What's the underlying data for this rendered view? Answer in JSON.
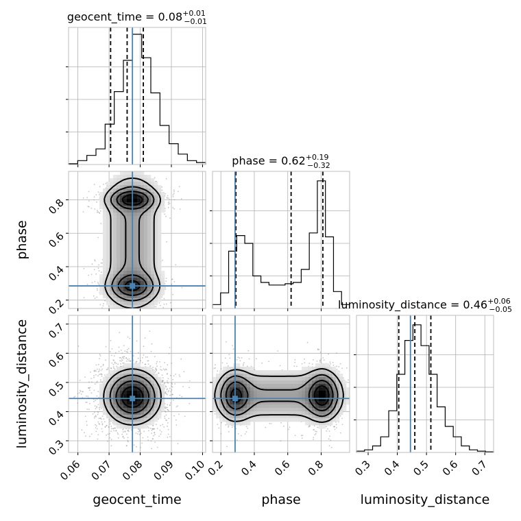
{
  "chart_data": {
    "type": "corner",
    "parameters": [
      {
        "name": "geocent_time",
        "title_prefix": "geocent_time = ",
        "median": "0.08",
        "plus": "+0.01",
        "minus": "−0.01",
        "range": [
          0.057,
          0.101
        ],
        "ticks": [
          0.06,
          0.07,
          0.08,
          0.09,
          0.1
        ],
        "tick_labels": [
          "0.06",
          "0.07",
          "0.08",
          "0.09",
          "0.10"
        ],
        "quantiles": [
          0.0705,
          0.0758,
          0.081
        ],
        "truth": 0.0775,
        "hist": [
          0.006,
          0.03,
          0.07,
          0.12,
          0.31,
          0.56,
          0.8,
          1.0,
          0.82,
          0.55,
          0.3,
          0.16,
          0.08,
          0.03,
          0.015
        ]
      },
      {
        "name": "phase",
        "title_prefix": "phase = ",
        "median": "0.62",
        "plus": "+0.19",
        "minus": "−0.32",
        "range": [
          0.15,
          0.97
        ],
        "ticks": [
          0.2,
          0.4,
          0.6,
          0.8
        ],
        "tick_labels": [
          "0.2",
          "0.4",
          "0.6",
          "0.8"
        ],
        "quantiles": [
          0.29,
          0.62,
          0.81
        ],
        "truth": 0.285,
        "hist": [
          0.03,
          0.12,
          0.44,
          0.56,
          0.5,
          0.25,
          0.2,
          0.18,
          0.18,
          0.19,
          0.2,
          0.3,
          0.58,
          0.98,
          0.55,
          0.13,
          0.03
        ]
      },
      {
        "name": "luminosity_distance",
        "title_prefix": "luminosity_distance = ",
        "median": "0.46",
        "plus": "+0.06",
        "minus": "−0.05",
        "range": [
          0.26,
          0.73
        ],
        "ticks": [
          0.3,
          0.4,
          0.5,
          0.6,
          0.7
        ],
        "tick_labels": [
          "0.3",
          "0.4",
          "0.5",
          "0.6",
          "0.7"
        ],
        "quantiles": [
          0.405,
          0.46,
          0.515
        ],
        "truth": 0.445,
        "hist": [
          0.01,
          0.02,
          0.05,
          0.12,
          0.32,
          0.6,
          0.86,
          0.98,
          0.82,
          0.6,
          0.35,
          0.2,
          0.12,
          0.05,
          0.02,
          0.01,
          0.005
        ]
      }
    ],
    "ytick_params": {
      "phase": {
        "ticks": [
          0.2,
          0.4,
          0.6,
          0.8
        ],
        "tick_labels": [
          "0.2",
          "0.4",
          "0.6",
          "0.8"
        ]
      },
      "luminosity_distance": {
        "ticks": [
          0.3,
          0.4,
          0.5,
          0.6,
          0.7
        ],
        "tick_labels": [
          "0.3",
          "0.4",
          "0.5",
          "0.6",
          "0.7"
        ]
      }
    },
    "pairs": [
      {
        "x": "geocent_time",
        "y": "phase",
        "modes": [
          {
            "x": 0.0775,
            "y": 0.8,
            "sx": 0.0042,
            "sy": 0.035,
            "w": 0.55
          },
          {
            "x": 0.0775,
            "y": 0.285,
            "sx": 0.0042,
            "sy": 0.045,
            "w": 0.45
          }
        ],
        "bridge": true
      },
      {
        "x": "geocent_time",
        "y": "luminosity_distance",
        "modes": [
          {
            "x": 0.0775,
            "y": 0.45,
            "sx": 0.0048,
            "sy": 0.05,
            "w": 1.0
          }
        ],
        "bridge": false
      },
      {
        "x": "phase",
        "y": "luminosity_distance",
        "modes": [
          {
            "x": 0.29,
            "y": 0.455,
            "sx": 0.05,
            "sy": 0.045,
            "w": 0.45
          },
          {
            "x": 0.805,
            "y": 0.455,
            "sx": 0.05,
            "sy": 0.045,
            "w": 0.55
          }
        ],
        "bridge": true
      }
    ],
    "truth_color": "#4682b4",
    "grid": true,
    "axis_labels": {
      "x": [
        "geocent_time",
        "phase",
        "luminosity_distance"
      ],
      "y": [
        "phase",
        "luminosity_distance"
      ]
    }
  }
}
